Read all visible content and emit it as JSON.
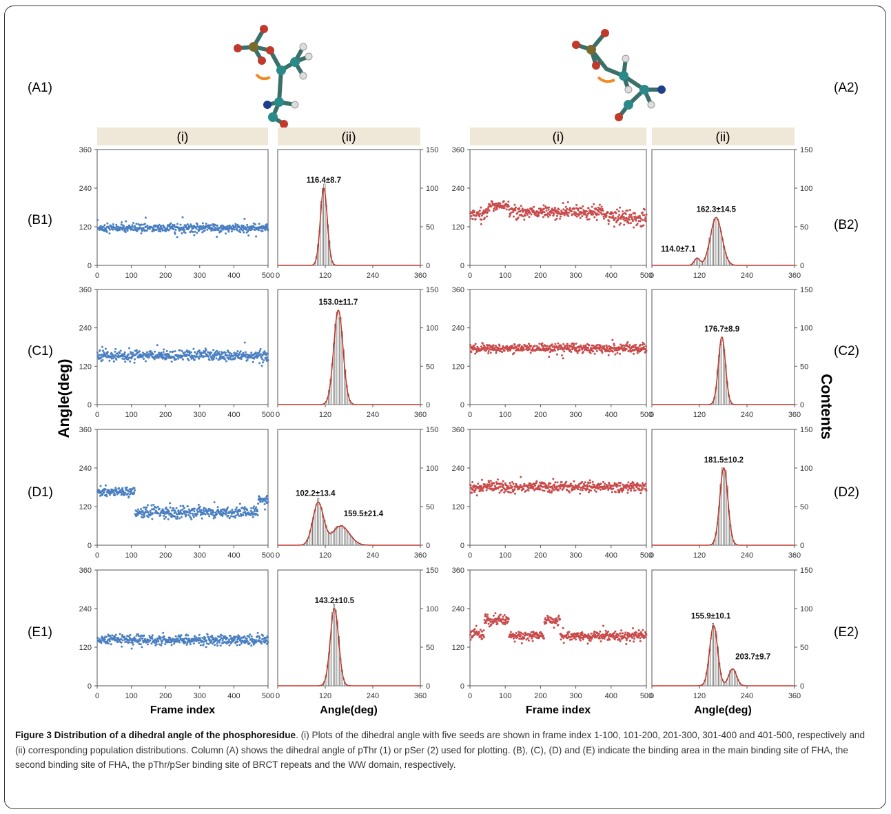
{
  "figure": {
    "row_labels": [
      "(A1)",
      "(A2)",
      "(B1)",
      "(B2)",
      "(C1)",
      "(C2)",
      "(D1)",
      "(D2)",
      "(E1)",
      "(E2)"
    ],
    "column_headers": [
      "(i)",
      "(ii)",
      "(i)",
      "(ii)"
    ],
    "y_axis_title_left": "Angle(deg)",
    "y_axis_title_right": "Contents",
    "x_axis_title_scatter": "Frame index",
    "x_axis_title_hist": "Angle(deg)",
    "colors": {
      "pThr": "#4a7fc1",
      "pSer": "#c94a4a",
      "fit": "#c0392b",
      "header_bar": "#efe8d8"
    }
  },
  "chart_data": [
    {
      "type": "scatter",
      "panel": "B1-i",
      "series_name": "pThr",
      "xlim": [
        0,
        500
      ],
      "ylim": [
        0,
        360
      ],
      "xticks": [
        0,
        100,
        200,
        300,
        400,
        500
      ],
      "yticks": [
        0,
        120,
        240,
        360
      ],
      "segments": [
        {
          "x": [
            1,
            500
          ],
          "mean": 116,
          "sd": 8
        }
      ]
    },
    {
      "type": "bar",
      "panel": "B1-ii",
      "xlim": [
        0,
        360
      ],
      "ylim": [
        0,
        150
      ],
      "xticks": [
        0,
        120,
        240,
        360
      ],
      "yticks": [
        0,
        50,
        100,
        150
      ],
      "peaks": [
        {
          "mean": 116.4,
          "sd": 8.7,
          "height": 100,
          "label": "116.4±8.7"
        }
      ]
    },
    {
      "type": "scatter",
      "panel": "B2-i",
      "series_name": "pSer",
      "xlim": [
        0,
        500
      ],
      "ylim": [
        0,
        360
      ],
      "xticks": [
        0,
        100,
        200,
        300,
        400,
        500
      ],
      "yticks": [
        0,
        120,
        240,
        360
      ],
      "segments": [
        {
          "x": [
            1,
            50
          ],
          "mean": 160,
          "sd": 12
        },
        {
          "x": [
            51,
            110
          ],
          "mean": 185,
          "sd": 10
        },
        {
          "x": [
            111,
            390
          ],
          "mean": 165,
          "sd": 12
        },
        {
          "x": [
            391,
            500
          ],
          "mean": 148,
          "sd": 16
        }
      ]
    },
    {
      "type": "bar",
      "panel": "B2-ii",
      "xlim": [
        0,
        360
      ],
      "ylim": [
        0,
        150
      ],
      "xticks": [
        0,
        120,
        240,
        360
      ],
      "yticks": [
        0,
        50,
        100,
        150
      ],
      "peaks": [
        {
          "mean": 114.0,
          "sd": 7.1,
          "height": 9,
          "label": "114.0±7.1"
        },
        {
          "mean": 162.3,
          "sd": 14.5,
          "height": 62,
          "label": "162.3±14.5"
        }
      ]
    },
    {
      "type": "scatter",
      "panel": "C1-i",
      "series_name": "pThr",
      "xlim": [
        0,
        500
      ],
      "ylim": [
        0,
        360
      ],
      "xticks": [
        0,
        100,
        200,
        300,
        400,
        500
      ],
      "yticks": [
        0,
        120,
        240,
        360
      ],
      "segments": [
        {
          "x": [
            1,
            500
          ],
          "mean": 153,
          "sd": 10
        }
      ]
    },
    {
      "type": "bar",
      "panel": "C1-ii",
      "xlim": [
        0,
        360
      ],
      "ylim": [
        0,
        150
      ],
      "xticks": [
        0,
        120,
        240,
        360
      ],
      "yticks": [
        0,
        50,
        100,
        150
      ],
      "peaks": [
        {
          "mean": 153.0,
          "sd": 11.7,
          "height": 123,
          "label": "153.0±11.7"
        }
      ]
    },
    {
      "type": "scatter",
      "panel": "C2-i",
      "series_name": "pSer",
      "xlim": [
        0,
        500
      ],
      "ylim": [
        0,
        360
      ],
      "xticks": [
        0,
        100,
        200,
        300,
        400,
        500
      ],
      "yticks": [
        0,
        120,
        240,
        360
      ],
      "segments": [
        {
          "x": [
            1,
            500
          ],
          "mean": 176,
          "sd": 9
        }
      ]
    },
    {
      "type": "bar",
      "panel": "C2-ii",
      "xlim": [
        0,
        360
      ],
      "ylim": [
        0,
        150
      ],
      "xticks": [
        0,
        120,
        240,
        360
      ],
      "yticks": [
        0,
        50,
        100,
        150
      ],
      "peaks": [
        {
          "mean": 176.7,
          "sd": 8.9,
          "height": 88,
          "label": "176.7±8.9"
        }
      ]
    },
    {
      "type": "scatter",
      "panel": "D1-i",
      "series_name": "pThr",
      "xlim": [
        0,
        500
      ],
      "ylim": [
        0,
        360
      ],
      "xticks": [
        0,
        100,
        200,
        300,
        400,
        500
      ],
      "yticks": [
        0,
        120,
        240,
        360
      ],
      "segments": [
        {
          "x": [
            1,
            110
          ],
          "mean": 165,
          "sd": 8
        },
        {
          "x": [
            111,
            470
          ],
          "mean": 102,
          "sd": 11
        },
        {
          "x": [
            471,
            500
          ],
          "mean": 140,
          "sd": 8
        }
      ]
    },
    {
      "type": "bar",
      "panel": "D1-ii",
      "xlim": [
        0,
        360
      ],
      "ylim": [
        0,
        150
      ],
      "xticks": [
        0,
        120,
        240,
        360
      ],
      "yticks": [
        0,
        50,
        100,
        150
      ],
      "peaks": [
        {
          "mean": 102.2,
          "sd": 13.4,
          "height": 55,
          "label": "102.2±13.4"
        },
        {
          "mean": 159.5,
          "sd": 21.4,
          "height": 25,
          "label": "159.5±21.4"
        }
      ]
    },
    {
      "type": "scatter",
      "panel": "D2-i",
      "series_name": "pSer",
      "xlim": [
        0,
        500
      ],
      "ylim": [
        0,
        360
      ],
      "xticks": [
        0,
        100,
        200,
        300,
        400,
        500
      ],
      "yticks": [
        0,
        120,
        240,
        360
      ],
      "segments": [
        {
          "x": [
            1,
            500
          ],
          "mean": 181,
          "sd": 10
        }
      ]
    },
    {
      "type": "bar",
      "panel": "D2-ii",
      "xlim": [
        0,
        360
      ],
      "ylim": [
        0,
        150
      ],
      "xticks": [
        0,
        120,
        240,
        360
      ],
      "yticks": [
        0,
        50,
        100,
        150
      ],
      "peaks": [
        {
          "mean": 181.5,
          "sd": 10.2,
          "height": 100,
          "label": "181.5±10.2"
        }
      ]
    },
    {
      "type": "scatter",
      "panel": "E1-i",
      "series_name": "pThr",
      "xlim": [
        0,
        500
      ],
      "ylim": [
        0,
        360
      ],
      "xticks": [
        0,
        100,
        200,
        300,
        400,
        500
      ],
      "yticks": [
        0,
        120,
        240,
        360
      ],
      "segments": [
        {
          "x": [
            1,
            500
          ],
          "mean": 143,
          "sd": 10
        }
      ]
    },
    {
      "type": "bar",
      "panel": "E1-ii",
      "xlim": [
        0,
        360
      ],
      "ylim": [
        0,
        150
      ],
      "xticks": [
        0,
        120,
        240,
        360
      ],
      "yticks": [
        0,
        50,
        100,
        150
      ],
      "peaks": [
        {
          "mean": 143.2,
          "sd": 10.5,
          "height": 100,
          "label": "143.2±10.5"
        }
      ]
    },
    {
      "type": "scatter",
      "panel": "E2-i",
      "series_name": "pSer",
      "xlim": [
        0,
        500
      ],
      "ylim": [
        0,
        360
      ],
      "xticks": [
        0,
        100,
        200,
        300,
        400,
        500
      ],
      "yticks": [
        0,
        120,
        240,
        360
      ],
      "segments": [
        {
          "x": [
            1,
            40
          ],
          "mean": 160,
          "sd": 10
        },
        {
          "x": [
            41,
            110
          ],
          "mean": 205,
          "sd": 9
        },
        {
          "x": [
            111,
            210
          ],
          "mean": 155,
          "sd": 9
        },
        {
          "x": [
            211,
            255
          ],
          "mean": 205,
          "sd": 9
        },
        {
          "x": [
            256,
            500
          ],
          "mean": 155,
          "sd": 9
        }
      ]
    },
    {
      "type": "bar",
      "panel": "E2-ii",
      "xlim": [
        0,
        360
      ],
      "ylim": [
        0,
        150
      ],
      "xticks": [
        0,
        120,
        240,
        360
      ],
      "yticks": [
        0,
        50,
        100,
        150
      ],
      "peaks": [
        {
          "mean": 155.9,
          "sd": 10.1,
          "height": 78,
          "label": "155.9±10.1"
        },
        {
          "mean": 203.7,
          "sd": 9.7,
          "height": 22,
          "label": "203.7±9.7"
        }
      ]
    }
  ],
  "caption": {
    "title": "Figure 3 Distribution of a dihedral angle of the phosphoresidue",
    "body": ". (i) Plots of the dihedral angle with five seeds are shown in frame index 1-100, 101-200, 201-300, 301-400 and 401-500, respectively and (ii) corresponding population distributions. Column (A) shows the dihedral angle of pThr (1) or pSer (2) used for plotting. (B), (C), (D) and (E) indicate the binding area in the main binding site of FHA, the second binding site of FHA, the pThr/pSer binding site of BRCT repeats and the WW domain, respectively."
  }
}
